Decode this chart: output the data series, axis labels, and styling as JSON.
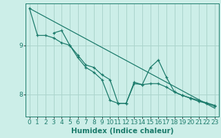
{
  "background_color": "#cceee8",
  "grid_color": "#aad4cc",
  "line_color": "#1a7a6a",
  "xlabel": "Humidex (Indice chaleur)",
  "xlabel_fontsize": 7.5,
  "tick_fontsize": 6.5,
  "xlim": [
    -0.5,
    23.5
  ],
  "ylim": [
    7.55,
    9.85
  ],
  "yticks": [
    8,
    9
  ],
  "xticks": [
    0,
    1,
    2,
    3,
    4,
    5,
    6,
    7,
    8,
    9,
    10,
    11,
    12,
    13,
    14,
    15,
    16,
    17,
    18,
    19,
    20,
    21,
    22,
    23
  ],
  "series1_x": [
    0,
    1,
    2,
    3,
    4,
    5,
    6,
    7,
    8,
    9,
    10,
    11,
    12,
    13,
    14,
    15,
    16,
    17,
    18,
    19,
    20,
    21,
    22,
    23
  ],
  "series1_y": [
    9.75,
    9.2,
    9.2,
    9.15,
    9.05,
    9.0,
    8.75,
    8.55,
    8.45,
    8.3,
    7.88,
    7.82,
    7.82,
    8.22,
    8.2,
    8.22,
    8.22,
    8.15,
    8.05,
    7.98,
    7.92,
    7.86,
    7.82,
    7.76
  ],
  "series2_x": [
    3,
    4,
    5,
    6,
    7,
    8,
    9,
    10,
    11,
    12,
    13,
    14,
    15,
    16,
    17,
    18,
    19,
    20,
    21,
    22,
    23
  ],
  "series2_y": [
    9.25,
    9.3,
    9.0,
    8.8,
    8.6,
    8.55,
    8.4,
    8.3,
    7.82,
    7.82,
    8.25,
    8.2,
    8.55,
    8.7,
    8.35,
    8.05,
    7.98,
    7.93,
    7.88,
    7.83,
    7.78
  ],
  "line_x": [
    0,
    23
  ],
  "line_y": [
    9.75,
    7.72
  ]
}
